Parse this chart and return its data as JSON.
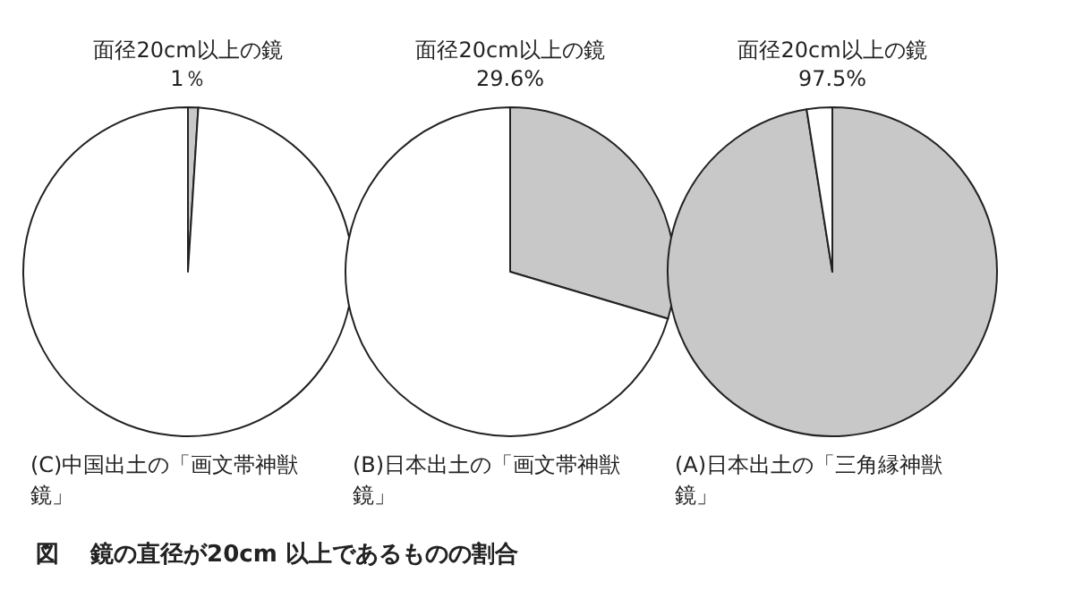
{
  "chart_data": [
    {
      "type": "pie",
      "title": "面径20cm以上の鏡",
      "subtitle": "1％",
      "categories": [
        null,
        null
      ],
      "values": [
        1,
        99
      ],
      "colors": [
        "#c8c8c8",
        "#ffffff"
      ],
      "xlabel": "(C)中国出土の「画文帯神獣鏡」",
      "annotations": [
        "図　 鏡の直径が20cm 以上であるものの割合"
      ]
    },
    {
      "type": "pie",
      "title": "面径20cm以上の鏡",
      "subtitle": "29.6%",
      "categories": [
        null,
        null
      ],
      "values": [
        29.6,
        70.4
      ],
      "colors": [
        "#c8c8c8",
        "#ffffff"
      ],
      "xlabel": "(B)日本出土の「画文帯神獣鏡」"
    },
    {
      "type": "pie",
      "title": "面径20cm以上の鏡",
      "subtitle": "97.5%",
      "categories": [
        null,
        null
      ],
      "values": [
        97.5,
        2.5
      ],
      "colors": [
        "#c8c8c8",
        "#ffffff"
      ],
      "xlabel": "(A)日本出土の「三角縁神獣鏡」"
    }
  ]
}
